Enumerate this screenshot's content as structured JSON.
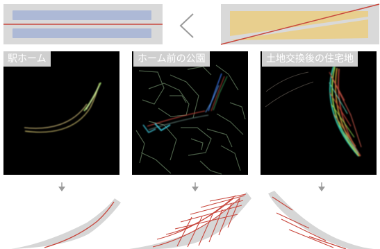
{
  "panels": {
    "left": {
      "label": "駅ホーム"
    },
    "middle": {
      "label": "ホーム前の公園"
    },
    "right": {
      "label": "土地交換後の住宅地"
    }
  },
  "comparison_symbol": "<",
  "colors": {
    "frame_bg": "#d9d9d9",
    "parallel_band": "#adb9d6",
    "wedge_fill": "#e8cf8e",
    "red_line": "#c8463c",
    "panel_bg": "#000000",
    "gray_shape": "#d6d6d6",
    "arrow": "#9a9a9a",
    "label_bg": "#cfcfcf",
    "label_text": "#ffffff"
  }
}
